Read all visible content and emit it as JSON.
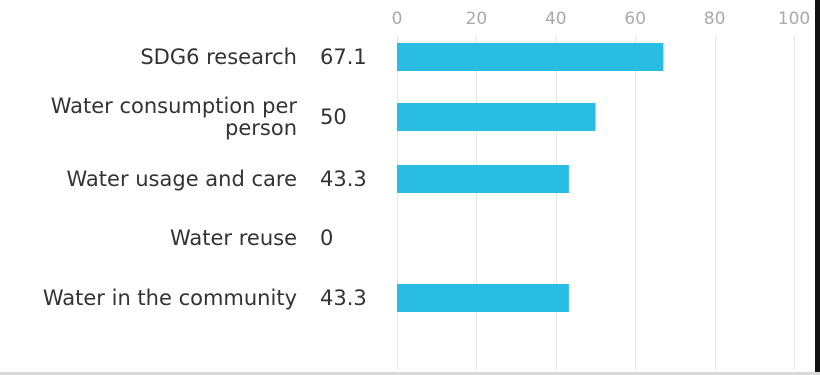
{
  "chart_data": {
    "type": "bar",
    "orientation": "horizontal",
    "categories": [
      [
        "SDG6 research"
      ],
      [
        "Water consumption per",
        "person"
      ],
      [
        "Water usage and care"
      ],
      [
        "Water reuse"
      ],
      [
        "Water in the community"
      ]
    ],
    "value_labels": [
      "67.1",
      "50",
      "43.3",
      "0",
      "43.3"
    ],
    "values": [
      67.1,
      50,
      43.3,
      0,
      43.3
    ],
    "xlim": [
      0,
      100
    ],
    "x_ticks": [
      0,
      20,
      40,
      60,
      80,
      100
    ],
    "x_tick_labels": [
      "0",
      "20",
      "40",
      "60",
      "80",
      "100"
    ],
    "axis_position": "top",
    "grid": true,
    "bar_color": "#29bde3",
    "grid_color": "#e6e6e6"
  }
}
